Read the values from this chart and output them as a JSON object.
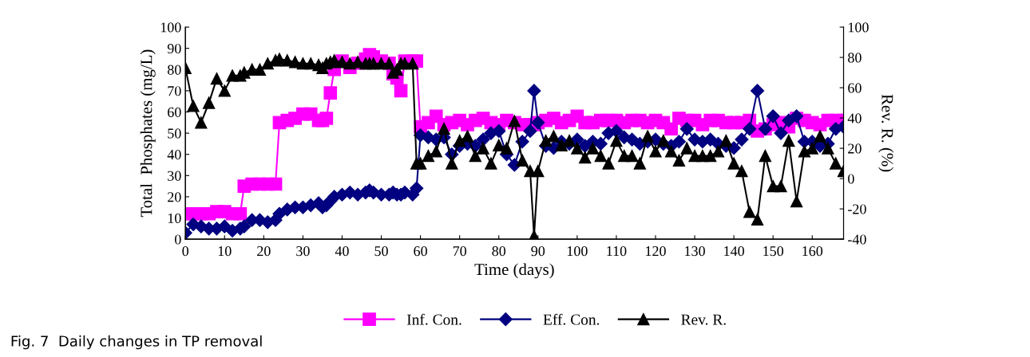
{
  "chart_data": {
    "type": "line",
    "xlabel": "Time (days)",
    "ylabel": "Total  Phosphates (mg/L)",
    "y2label": "Rev. R. (%)",
    "annotations": [
      "Fig. 7  Daily changes in TP removal"
    ],
    "x": [
      0,
      2,
      4,
      6,
      8,
      10,
      12,
      14,
      15,
      17,
      19,
      21,
      23,
      24,
      26,
      28,
      30,
      32,
      34,
      35,
      36,
      37,
      38,
      40,
      42,
      44,
      46,
      47,
      48,
      50,
      52,
      53,
      54,
      55,
      56,
      58,
      59,
      60,
      62,
      64,
      66,
      68,
      70,
      72,
      74,
      76,
      78,
      80,
      82,
      84,
      86,
      88,
      89,
      90,
      92,
      94,
      96,
      98,
      100,
      102,
      104,
      106,
      108,
      110,
      112,
      114,
      116,
      118,
      120,
      122,
      124,
      126,
      128,
      130,
      132,
      134,
      136,
      138,
      140,
      142,
      144,
      146,
      148,
      150,
      152,
      154,
      156,
      158,
      160,
      162,
      164,
      166,
      168
    ],
    "series": [
      {
        "name": "Inf. Con.",
        "color": "#ff00ff",
        "marker": "square",
        "values": [
          12,
          12,
          12,
          12,
          13,
          13,
          12,
          12,
          25,
          26,
          26,
          26,
          26,
          55,
          56,
          57,
          59,
          59,
          56,
          56,
          57,
          69,
          80,
          84,
          81,
          83,
          85,
          87,
          86,
          84,
          83,
          78,
          76,
          70,
          84,
          84,
          84,
          53,
          55,
          58,
          54,
          55,
          56,
          54,
          56,
          57,
          55,
          54,
          56,
          55,
          54,
          54,
          54,
          55,
          56,
          57,
          55,
          56,
          58,
          55,
          55,
          56,
          56,
          56,
          55,
          56,
          56,
          55,
          56,
          55,
          52,
          57,
          56,
          56,
          54,
          56,
          56,
          55,
          55,
          55,
          56,
          51,
          52,
          54,
          55,
          53,
          57,
          56,
          55,
          54,
          56,
          56,
          56
        ]
      },
      {
        "name": "Eff. Con.",
        "color": "#000080",
        "marker": "diamond",
        "values": [
          3,
          7,
          6,
          5,
          5,
          6,
          4,
          5,
          6,
          9,
          9,
          8,
          9,
          12,
          14,
          15,
          15,
          16,
          17,
          15,
          16,
          18,
          20,
          21,
          22,
          21,
          22,
          23,
          22,
          21,
          21,
          22,
          21,
          21,
          22,
          21,
          24,
          49,
          48,
          47,
          48,
          40,
          44,
          45,
          44,
          47,
          50,
          51,
          40,
          35,
          46,
          51,
          70,
          55,
          44,
          43,
          46,
          45,
          47,
          44,
          46,
          45,
          50,
          51,
          48,
          47,
          45,
          46,
          47,
          45,
          44,
          46,
          52,
          47,
          46,
          47,
          45,
          44,
          43,
          47,
          52,
          70,
          52,
          58,
          50,
          56,
          58,
          46,
          46,
          44,
          45,
          52,
          53
        ]
      },
      {
        "name": "Rev. R.",
        "color": "#000000",
        "marker": "triangle",
        "axis": "y2",
        "values": [
          73,
          48,
          37,
          50,
          66,
          58,
          68,
          68,
          70,
          72,
          72,
          76,
          78,
          79,
          78,
          77,
          76,
          76,
          75,
          73,
          76,
          77,
          78,
          77,
          76,
          77,
          76,
          76,
          76,
          76,
          76,
          70,
          72,
          76,
          76,
          76,
          10,
          10,
          15,
          18,
          33,
          10,
          25,
          28,
          15,
          20,
          10,
          22,
          20,
          38,
          12,
          5,
          -38,
          5,
          25,
          28,
          22,
          25,
          20,
          14,
          20,
          15,
          10,
          25,
          15,
          15,
          10,
          28,
          18,
          25,
          18,
          12,
          20,
          15,
          15,
          15,
          18,
          25,
          10,
          5,
          -22,
          -27,
          15,
          -5,
          -5,
          25,
          -15,
          18,
          20,
          28,
          20,
          10,
          5
        ]
      }
    ],
    "xlim": [
      0,
      168
    ],
    "xticks": [
      0,
      10,
      20,
      30,
      40,
      50,
      60,
      70,
      80,
      90,
      100,
      110,
      120,
      130,
      140,
      150,
      160
    ],
    "ylim": [
      0,
      100
    ],
    "yticks": [
      0,
      10,
      20,
      30,
      40,
      50,
      60,
      70,
      80,
      90,
      100
    ],
    "y2lim": [
      -40,
      100
    ],
    "y2ticks": [
      -40,
      -20,
      0,
      20,
      40,
      60,
      80,
      100
    ],
    "legend": "bottom",
    "grid": false
  }
}
